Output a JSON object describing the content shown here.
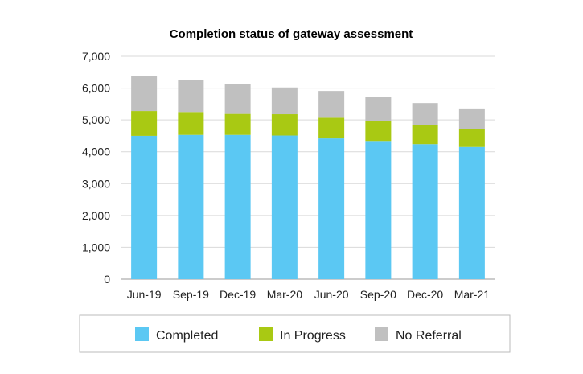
{
  "chart_data": {
    "type": "bar",
    "stacked": true,
    "title": "Completion status of gateway assessment",
    "xlabel": "",
    "ylabel": "",
    "categories": [
      "Jun-19",
      "Sep-19",
      "Dec-19",
      "Mar-20",
      "Jun-20",
      "Sep-20",
      "Dec-20",
      "Mar-21"
    ],
    "series": [
      {
        "name": "Completed",
        "color": "#5BC8F3",
        "values": [
          4500,
          4530,
          4530,
          4510,
          4420,
          4340,
          4240,
          4150
        ]
      },
      {
        "name": "In Progress",
        "color": "#A9C913",
        "values": [
          780,
          720,
          660,
          670,
          650,
          620,
          610,
          570
        ]
      },
      {
        "name": "No Referral",
        "color": "#C0C0C0",
        "values": [
          1090,
          1000,
          940,
          840,
          840,
          770,
          680,
          640
        ]
      }
    ],
    "ylim": [
      0,
      7000
    ],
    "yticks": [
      0,
      1000,
      2000,
      3000,
      4000,
      5000,
      6000,
      7000
    ],
    "ytick_labels": [
      "0",
      "1,000",
      "2,000",
      "3,000",
      "4,000",
      "5,000",
      "6,000",
      "7,000"
    ],
    "grid": true,
    "legend_position": "bottom"
  }
}
